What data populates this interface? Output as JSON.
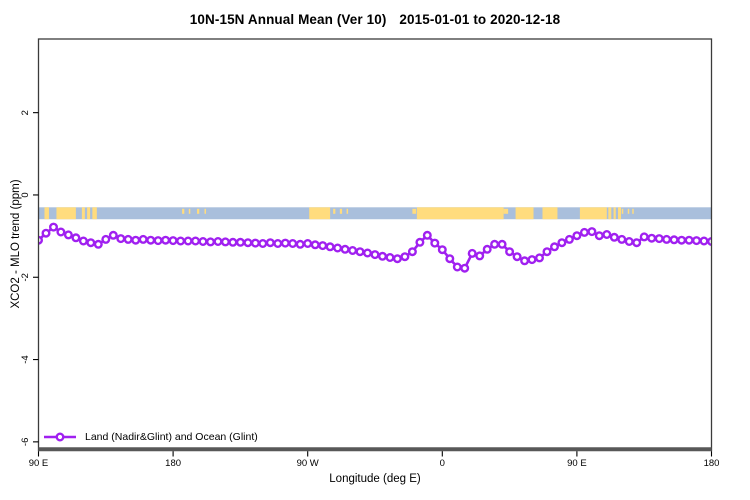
{
  "header": {
    "title_main": "10N-15N Annual Mean (Ver 10)",
    "title_dates": "2015-01-01 to 2020-12-18"
  },
  "chart_data": {
    "type": "line",
    "title": "10N-15N Annual Mean (Ver 10)   2015-01-01 to 2020-12-18",
    "xlabel": "Longitude (deg E)",
    "ylabel": "XCO2 - MLO trend (ppm)",
    "xlim": [
      90,
      540
    ],
    "ylim": [
      -6.21,
      3.79
    ],
    "grid": false,
    "x_ticks": [
      {
        "x": 90,
        "label": "90 E"
      },
      {
        "x": 180,
        "label": "180"
      },
      {
        "x": 270,
        "label": "90 W"
      },
      {
        "x": 360,
        "label": "0"
      },
      {
        "x": 450,
        "label": "90 E"
      },
      {
        "x": 540,
        "label": "180"
      }
    ],
    "y_ticks": [
      {
        "y": 2,
        "label": "2"
      },
      {
        "y": 0,
        "label": "0"
      },
      {
        "y": -2,
        "label": "-2"
      },
      {
        "y": -4,
        "label": "-4"
      },
      {
        "y": -6,
        "label": "-6"
      }
    ],
    "legend": {
      "position": "bottom-left",
      "label": "Land (Nadir&Glint) and Ocean (Glint)"
    },
    "series": [
      {
        "name": "Land (Nadir&Glint) and Ocean (Glint)",
        "color": "#a020f0",
        "marker": "open-circle",
        "x": [
          90,
          95,
          100,
          105,
          110,
          115,
          120,
          125,
          130,
          135,
          140,
          145,
          150,
          155,
          160,
          165,
          170,
          175,
          180,
          185,
          190,
          195,
          200,
          205,
          210,
          215,
          220,
          225,
          230,
          235,
          240,
          245,
          250,
          255,
          260,
          265,
          270,
          275,
          280,
          285,
          290,
          295,
          300,
          305,
          310,
          315,
          320,
          325,
          330,
          335,
          340,
          345,
          350,
          355,
          360,
          365,
          370,
          375,
          380,
          385,
          390,
          395,
          400,
          405,
          410,
          415,
          420,
          425,
          430,
          435,
          440,
          445,
          450,
          455,
          460,
          465,
          470,
          475,
          480,
          485,
          490,
          495,
          500,
          505,
          510,
          515,
          520,
          525,
          530,
          535,
          540
        ],
        "values": [
          -1.1,
          -0.93,
          -0.78,
          -0.9,
          -0.97,
          -1.04,
          -1.12,
          -1.16,
          -1.2,
          -1.08,
          -0.98,
          -1.06,
          -1.08,
          -1.1,
          -1.08,
          -1.1,
          -1.11,
          -1.1,
          -1.11,
          -1.12,
          -1.12,
          -1.12,
          -1.13,
          -1.14,
          -1.13,
          -1.14,
          -1.15,
          -1.15,
          -1.16,
          -1.17,
          -1.18,
          -1.16,
          -1.18,
          -1.17,
          -1.18,
          -1.2,
          -1.18,
          -1.21,
          -1.23,
          -1.26,
          -1.29,
          -1.32,
          -1.35,
          -1.38,
          -1.41,
          -1.45,
          -1.49,
          -1.52,
          -1.55,
          -1.5,
          -1.38,
          -1.15,
          -0.98,
          -1.17,
          -1.33,
          -1.55,
          -1.75,
          -1.78,
          -1.42,
          -1.48,
          -1.32,
          -1.2,
          -1.2,
          -1.38,
          -1.5,
          -1.6,
          -1.57,
          -1.53,
          -1.38,
          -1.26,
          -1.16,
          -1.08,
          -0.99,
          -0.91,
          -0.89,
          -0.99,
          -0.96,
          -1.03,
          -1.08,
          -1.13,
          -1.16,
          -1.02,
          -1.05,
          -1.06,
          -1.08,
          -1.09,
          -1.1,
          -1.1,
          -1.11,
          -1.12,
          -1.13
        ]
      }
    ],
    "map_band": {
      "description": "land/ocean strip for 10N-15N latitude belt",
      "value_top": -0.3,
      "value_bottom": -0.59,
      "ocean_color": "#a9bfdc",
      "land_color": "#ffdc7e",
      "land_segments": [
        [
          94,
          97
        ],
        [
          102,
          115
        ],
        [
          119,
          121
        ],
        [
          122.5,
          124.5
        ],
        [
          126,
          129
        ],
        [
          271,
          285
        ],
        [
          343,
          401
        ],
        [
          409,
          421
        ],
        [
          427,
          437
        ],
        [
          452,
          470
        ],
        [
          471,
          473
        ],
        [
          474.5,
          476
        ],
        [
          477.5,
          479.5
        ]
      ],
      "land_dots": [
        [
          186,
          187.5
        ],
        [
          190.5,
          191.5
        ],
        [
          196,
          197.5
        ],
        [
          201,
          202
        ],
        [
          287,
          288.5
        ],
        [
          291.5,
          293
        ],
        [
          296,
          297
        ],
        [
          340,
          342.5
        ],
        [
          401,
          404
        ],
        [
          480,
          481
        ],
        [
          484,
          485
        ],
        [
          487,
          488
        ]
      ]
    },
    "colors": {
      "box": "#3b3b3b",
      "baseline": "#585858",
      "text": "#000000",
      "background": "#ffffff"
    }
  }
}
